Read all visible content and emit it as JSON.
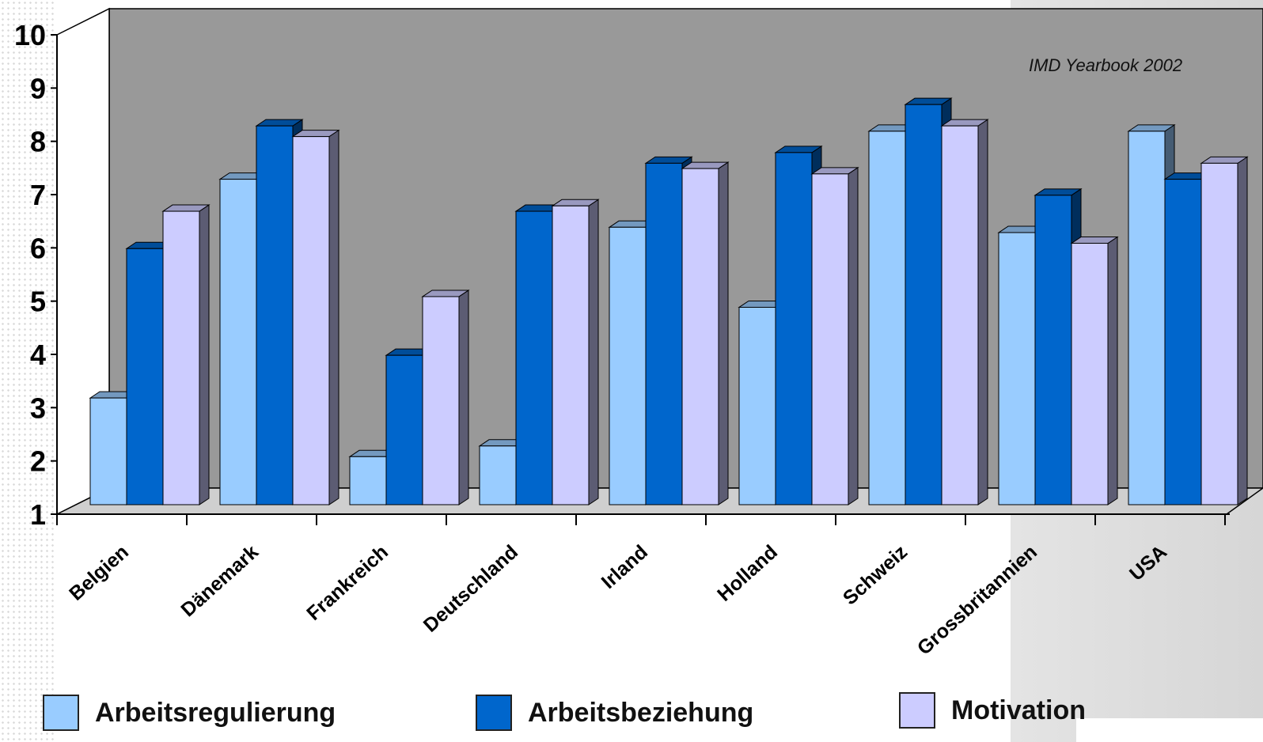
{
  "chart_data": {
    "type": "bar",
    "annotation": "IMD Yearbook 2002",
    "categories": [
      "Belgien",
      "Dänemark",
      "Frankreich",
      "Deutschland",
      "Irland",
      "Holland",
      "Schweiz",
      "Grossbritannien",
      "USA"
    ],
    "series": [
      {
        "name": "Arbeitsregulierung",
        "color": "#99ccff",
        "values": [
          3.0,
          7.1,
          1.9,
          2.1,
          6.2,
          4.7,
          8.0,
          6.1,
          8.0
        ]
      },
      {
        "name": "Arbeitsbeziehung",
        "color": "#0066cc",
        "values": [
          5.8,
          8.1,
          3.8,
          6.5,
          7.4,
          7.6,
          8.5,
          6.8,
          7.1
        ]
      },
      {
        "name": "Motivation",
        "color": "#ccccff",
        "values": [
          6.5,
          7.9,
          4.9,
          6.6,
          7.3,
          7.2,
          8.1,
          5.9,
          7.4
        ]
      }
    ],
    "y_ticks": [
      "1",
      "2",
      "3",
      "4",
      "5",
      "6",
      "7",
      "8",
      "9",
      "10"
    ],
    "ylim": [
      1,
      10
    ],
    "xlabel": "",
    "ylabel": "",
    "grid": false,
    "legend_position": "bottom"
  }
}
